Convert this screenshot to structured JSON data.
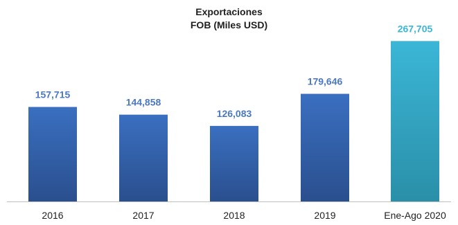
{
  "chart_data": {
    "type": "bar",
    "title_line1": "Exportaciones",
    "title_line2": "FOB (Miles USD)",
    "categories": [
      "2016",
      "2017",
      "2018",
      "2019",
      "Ene-Ago 2020"
    ],
    "values": [
      157715,
      144858,
      126083,
      179646,
      267705
    ],
    "value_labels": [
      "157,715",
      "144,858",
      "126,083",
      "179,646",
      "267,705"
    ],
    "ylim": [
      0,
      290000
    ],
    "grid": false,
    "legend": "none",
    "colors": {
      "bar": "#3a6fc0",
      "bar_dark": "#2a4f8e",
      "bar_highlight": "#3bb6d6",
      "bar_highlight_dark": "#2a8fa8",
      "label": "#4a78c4",
      "label_highlight": "#3bb6d6",
      "axis": "#bfbfbf",
      "tick_text": "#1f1f1f"
    }
  }
}
